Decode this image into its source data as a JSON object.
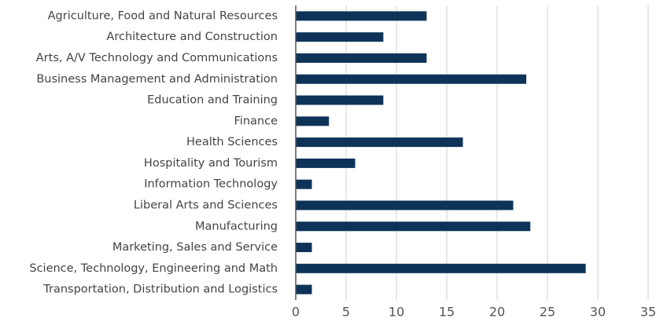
{
  "chart_data": {
    "type": "bar",
    "orientation": "horizontal",
    "categories": [
      "Agriculture, Food and Natural Resources",
      "Architecture and Construction",
      "Arts, A/V Technology and Communications",
      "Business Management and Administration",
      "Education and Training",
      "Finance",
      "Health Sciences",
      "Hospitality and Tourism",
      "Information Technology",
      "Liberal Arts and Sciences",
      "Manufacturing",
      "Marketing, Sales and Service",
      "Science, Technology, Engineering and Math",
      "Transportation, Distribution and Logistics"
    ],
    "values": [
      13.0,
      8.7,
      13.0,
      22.9,
      8.7,
      3.3,
      16.6,
      5.9,
      1.6,
      21.6,
      23.3,
      1.6,
      28.8,
      1.6
    ],
    "color": "#0d3358",
    "xlim": [
      0,
      35
    ],
    "xticks": [
      0,
      5,
      10,
      15,
      20,
      25,
      30,
      35
    ],
    "grid": true
  }
}
